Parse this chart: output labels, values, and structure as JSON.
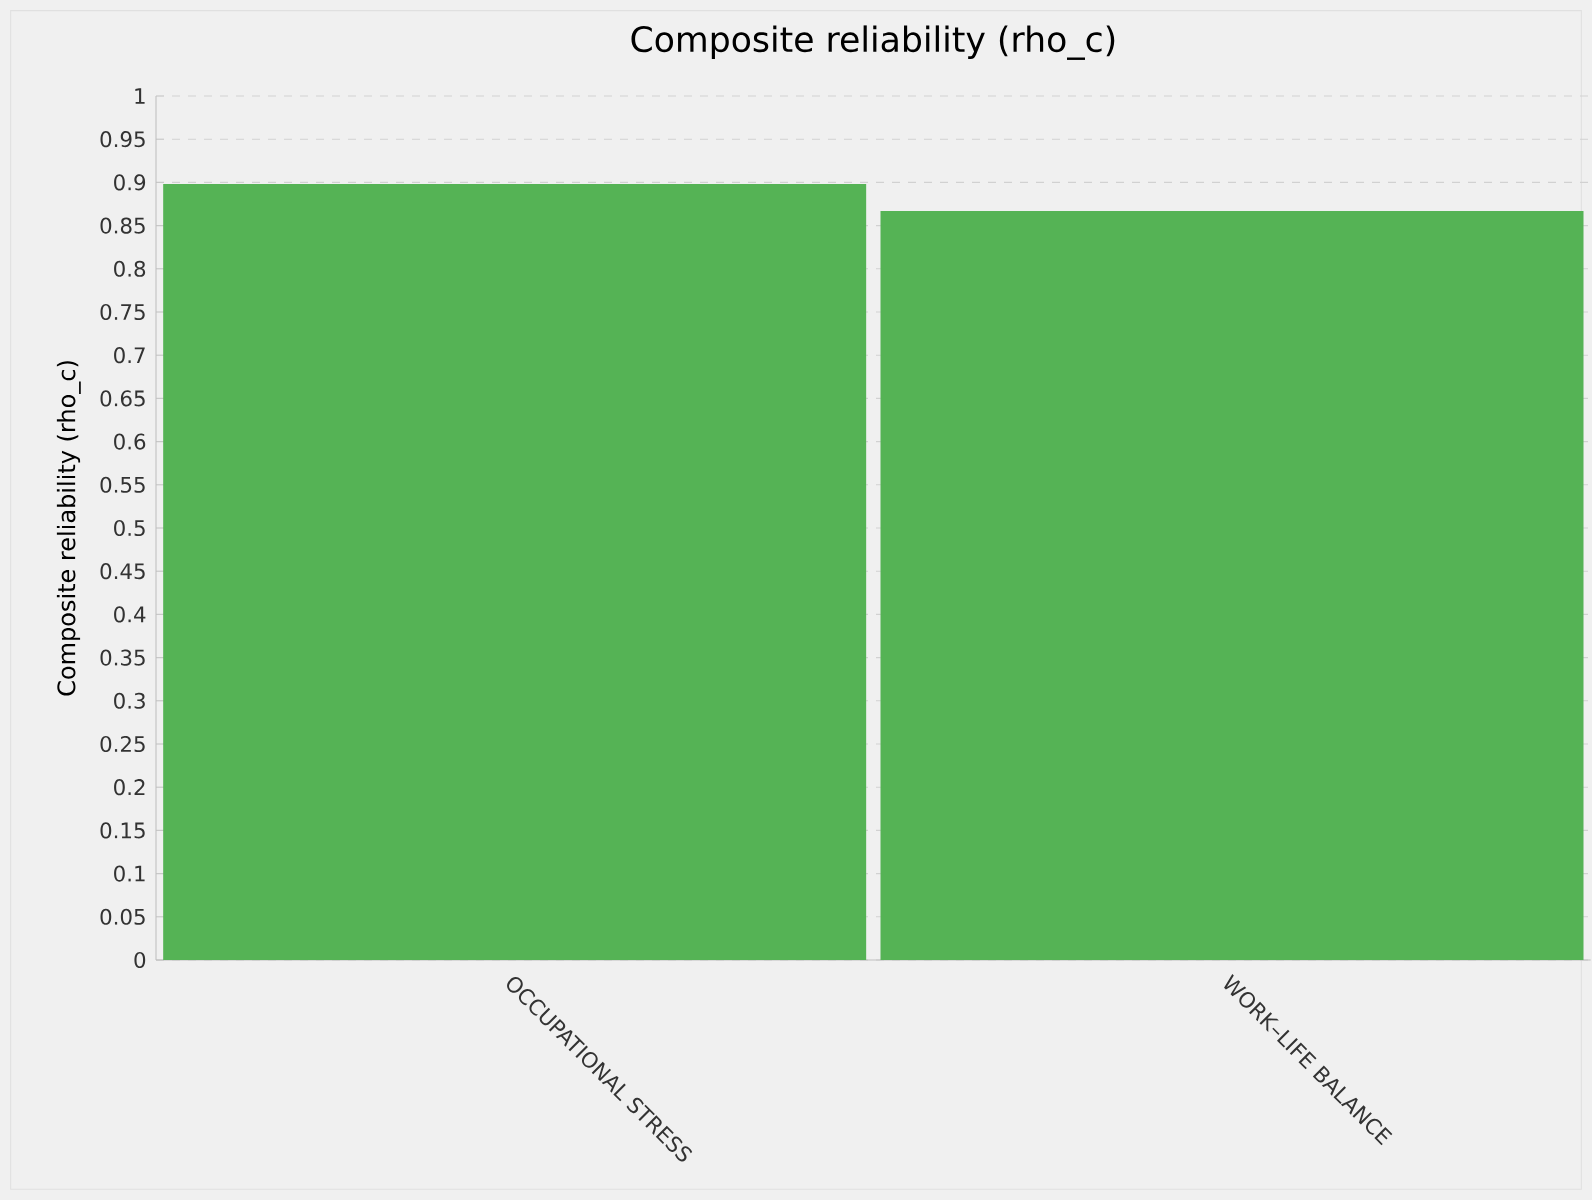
{
  "chart_data": {
    "type": "bar",
    "title": "Composite reliability (rho_c)",
    "ylabel": "Composite reliability (rho_c)",
    "categories": [
      "OCCUPATIONAL STRESS",
      "WORK–LIFE BALANCE"
    ],
    "values": [
      0.898,
      0.867
    ],
    "color": "#55b355",
    "ylim": [
      0,
      1
    ],
    "yticks": [
      0,
      0.05,
      0.1,
      0.15,
      0.2,
      0.25,
      0.3,
      0.35,
      0.4,
      0.45,
      0.5,
      0.55,
      0.6,
      0.65,
      0.7,
      0.75,
      0.8,
      0.85,
      0.9,
      0.95,
      1
    ],
    "grid": "y"
  }
}
